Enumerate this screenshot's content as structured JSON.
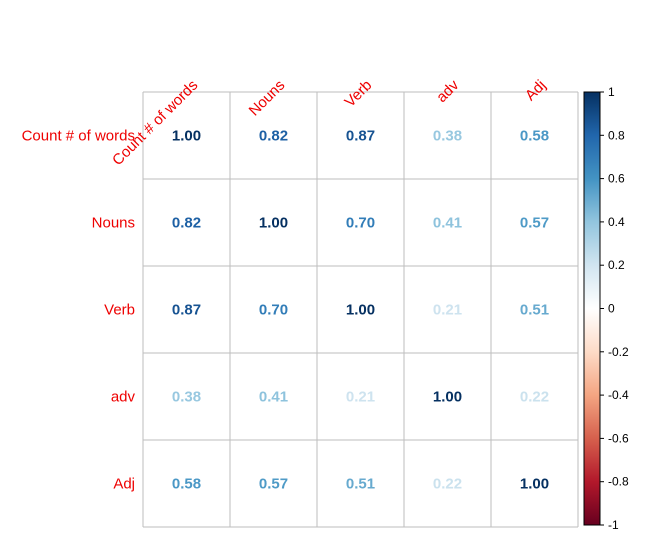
{
  "chart_data": {
    "type": "heatmap",
    "variables": [
      "Count # of words",
      "Nouns",
      "Verb",
      "adv",
      "Adj"
    ],
    "matrix": [
      [
        1.0,
        0.82,
        0.87,
        0.38,
        0.58
      ],
      [
        0.82,
        1.0,
        0.7,
        0.41,
        0.57
      ],
      [
        0.87,
        0.7,
        1.0,
        0.21,
        0.51
      ],
      [
        0.38,
        0.41,
        0.21,
        1.0,
        0.22
      ],
      [
        0.58,
        0.57,
        0.51,
        0.22,
        1.0
      ]
    ],
    "value_range": [
      -1,
      1
    ],
    "colorbar_ticks": [
      {
        "value": 1,
        "label": "1"
      },
      {
        "value": 0.8,
        "label": "0.8"
      },
      {
        "value": 0.6,
        "label": "0.6"
      },
      {
        "value": 0.4,
        "label": "0.4"
      },
      {
        "value": 0.2,
        "label": "0.2"
      },
      {
        "value": 0,
        "label": "0"
      },
      {
        "value": -0.2,
        "label": "-0.2"
      },
      {
        "value": -0.4,
        "label": "-0.4"
      },
      {
        "value": -0.6,
        "label": "-0.6"
      },
      {
        "value": -0.8,
        "label": "-0.8"
      },
      {
        "value": -1,
        "label": "-1"
      }
    ],
    "label_color": "#ee0000",
    "grid_color": "#bdbdbd",
    "palette": [
      "#67001f",
      "#b2182b",
      "#d6604d",
      "#f4a582",
      "#fddbc7",
      "#ffffff",
      "#d1e5f0",
      "#92c5de",
      "#4393c3",
      "#2166ac",
      "#053061"
    ],
    "legend": "right",
    "grid": true
  }
}
